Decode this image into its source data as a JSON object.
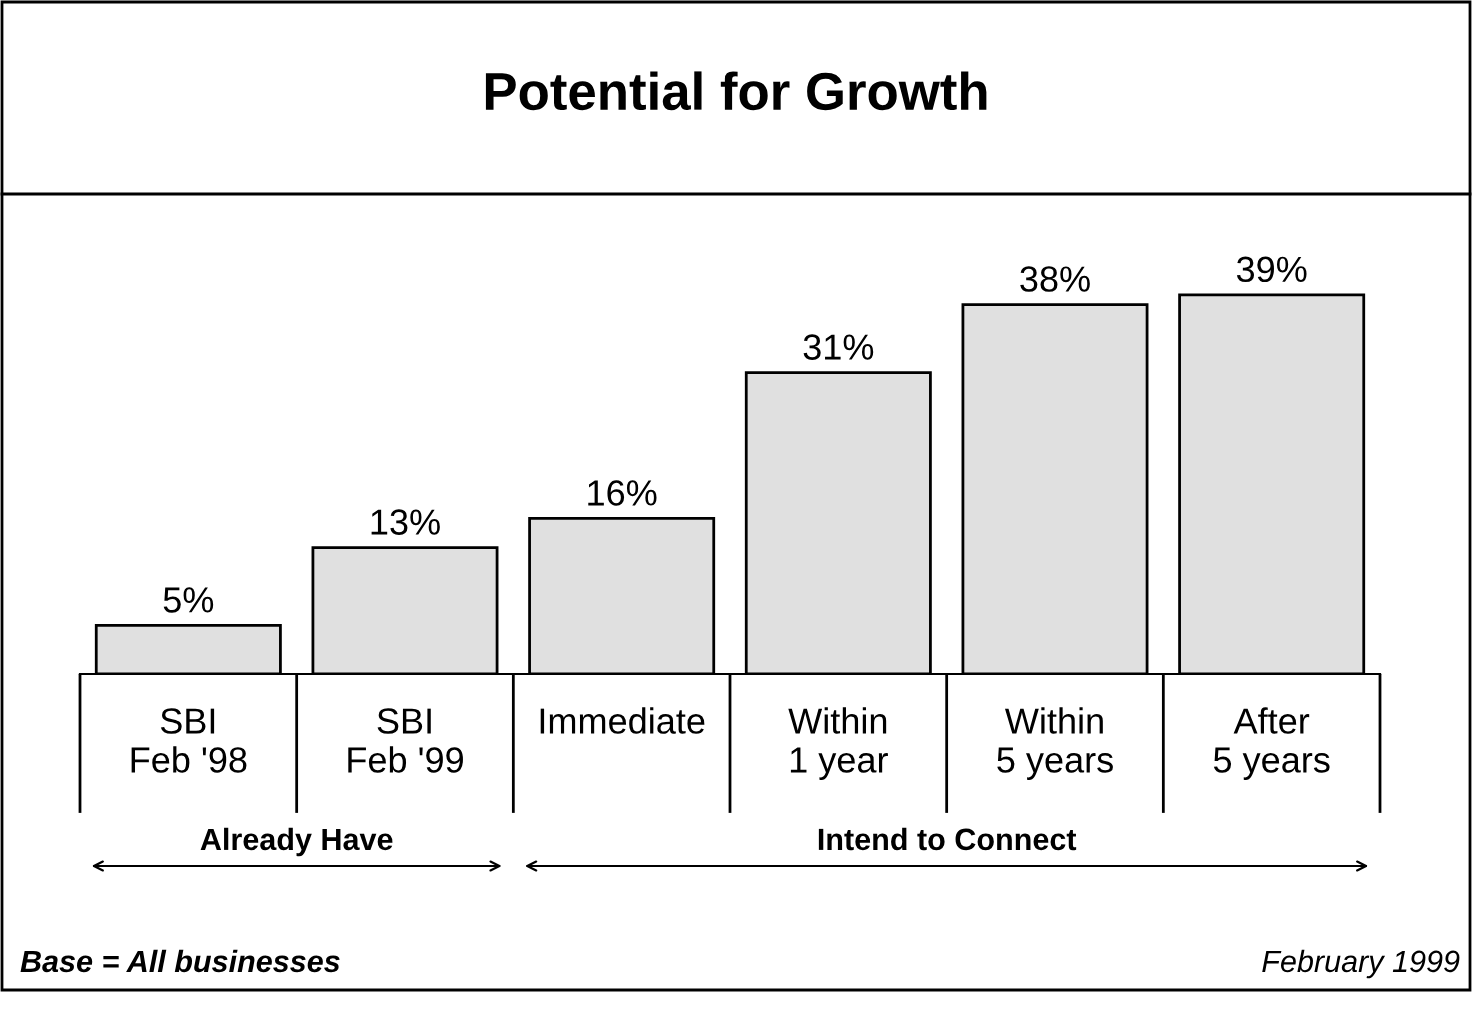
{
  "chart_data": {
    "type": "bar",
    "title": "Potential for Growth",
    "categories": [
      "SBI\nFeb '98",
      "SBI\nFeb '99",
      "Immediate",
      "Within\n1 year",
      "Within\n5 years",
      "After\n5 years"
    ],
    "values": [
      5,
      13,
      16,
      31,
      38,
      39
    ],
    "value_labels": [
      "5%",
      "13%",
      "16%",
      "31%",
      "38%",
      "39%"
    ],
    "color": "#e0e0e0",
    "annotations": [
      "Already Have",
      "Intend to Connect",
      "Base = All businesses",
      "February 1999"
    ]
  }
}
